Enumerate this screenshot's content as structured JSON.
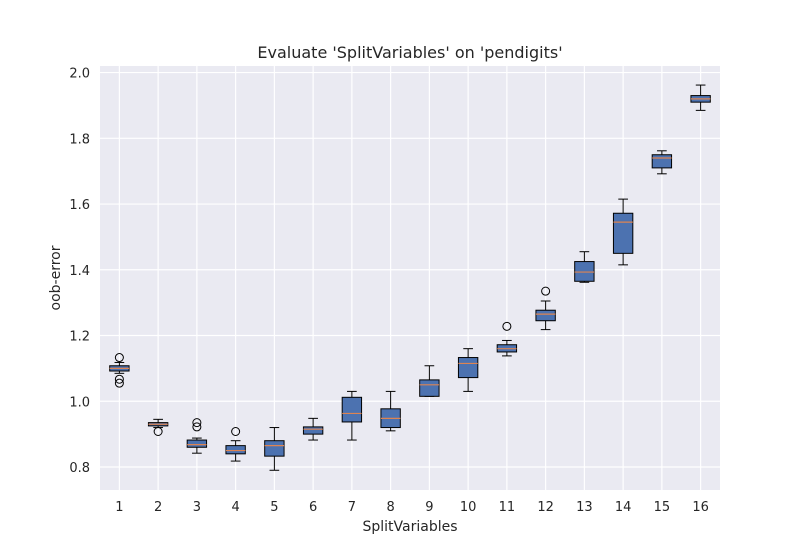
{
  "chart_data": {
    "type": "box",
    "title": "Evaluate 'SplitVariables' on 'pendigits'",
    "xlabel": "SplitVariables",
    "ylabel": "oob-error",
    "ylim": [
      0.73,
      2.02
    ],
    "yticks": [
      0.8,
      1.0,
      1.2,
      1.4,
      1.6,
      1.8,
      2.0
    ],
    "ytick_labels": [
      "0.8",
      "1.0",
      "1.2",
      "1.4",
      "1.6",
      "1.8",
      "2.0"
    ],
    "grid": true,
    "categories": [
      "1",
      "2",
      "3",
      "4",
      "5",
      "6",
      "7",
      "8",
      "9",
      "10",
      "11",
      "12",
      "13",
      "14",
      "15",
      "16"
    ],
    "boxes": [
      {
        "category": "1",
        "whislo": 1.085,
        "q1": 1.092,
        "med": 1.1,
        "q3": 1.108,
        "whishi": 1.118,
        "fliers": [
          1.133,
          1.067,
          1.055
        ]
      },
      {
        "category": "2",
        "whislo": 0.92,
        "q1": 0.925,
        "med": 0.93,
        "q3": 0.935,
        "whishi": 0.945,
        "fliers": [
          0.908
        ]
      },
      {
        "category": "3",
        "whislo": 0.842,
        "q1": 0.86,
        "med": 0.868,
        "q3": 0.882,
        "whishi": 0.888,
        "fliers": [
          0.935,
          0.922
        ]
      },
      {
        "category": "4",
        "whislo": 0.818,
        "q1": 0.84,
        "med": 0.85,
        "q3": 0.865,
        "whishi": 0.88,
        "fliers": [
          0.908
        ]
      },
      {
        "category": "5",
        "whislo": 0.79,
        "q1": 0.833,
        "med": 0.865,
        "q3": 0.88,
        "whishi": 0.92,
        "fliers": []
      },
      {
        "category": "6",
        "whislo": 0.882,
        "q1": 0.9,
        "med": 0.915,
        "q3": 0.922,
        "whishi": 0.948,
        "fliers": []
      },
      {
        "category": "7",
        "whislo": 0.882,
        "q1": 0.937,
        "med": 0.963,
        "q3": 1.012,
        "whishi": 1.03,
        "fliers": []
      },
      {
        "category": "8",
        "whislo": 0.91,
        "q1": 0.92,
        "med": 0.948,
        "q3": 0.977,
        "whishi": 1.03,
        "fliers": []
      },
      {
        "category": "9",
        "whislo": 1.015,
        "q1": 1.015,
        "med": 1.05,
        "q3": 1.065,
        "whishi": 1.108,
        "fliers": []
      },
      {
        "category": "10",
        "whislo": 1.03,
        "q1": 1.072,
        "med": 1.115,
        "q3": 1.133,
        "whishi": 1.16,
        "fliers": []
      },
      {
        "category": "11",
        "whislo": 1.138,
        "q1": 1.15,
        "med": 1.16,
        "q3": 1.172,
        "whishi": 1.185,
        "fliers": [
          1.228
        ]
      },
      {
        "category": "12",
        "whislo": 1.218,
        "q1": 1.245,
        "med": 1.265,
        "q3": 1.277,
        "whishi": 1.305,
        "fliers": [
          1.335
        ]
      },
      {
        "category": "13",
        "whislo": 1.362,
        "q1": 1.365,
        "med": 1.393,
        "q3": 1.425,
        "whishi": 1.455,
        "fliers": []
      },
      {
        "category": "14",
        "whislo": 1.415,
        "q1": 1.45,
        "med": 1.545,
        "q3": 1.572,
        "whishi": 1.615,
        "fliers": []
      },
      {
        "category": "15",
        "whislo": 1.692,
        "q1": 1.71,
        "med": 1.74,
        "q3": 1.75,
        "whishi": 1.762,
        "fliers": []
      },
      {
        "category": "16",
        "whislo": 1.885,
        "q1": 1.91,
        "med": 1.92,
        "q3": 1.93,
        "whishi": 1.962,
        "fliers": []
      }
    ],
    "colors": {
      "plot_bg": "#eaeaf2",
      "grid": "#ffffff",
      "box_fill": "#4c72b0",
      "box_edge": "#000000",
      "median": "#dd8452",
      "flier_edge": "#000000"
    }
  }
}
